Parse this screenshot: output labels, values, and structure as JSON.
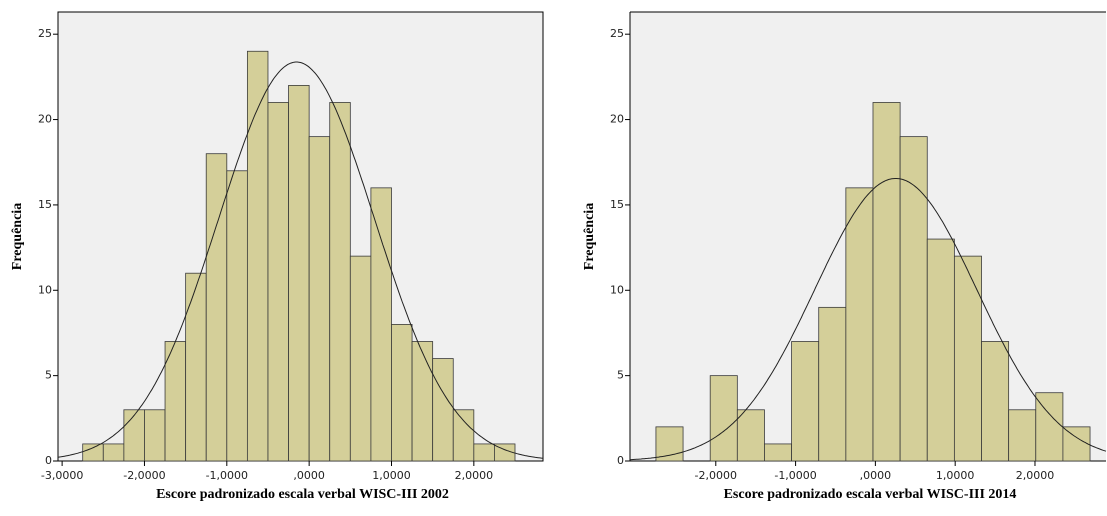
{
  "chart_data": [
    {
      "type": "histogram",
      "x_label": "Escore padronizado escala verbal WISC-III 2002",
      "y_label": "Frequência",
      "bins": [
        -2.75,
        -2.5,
        -2.25,
        -2.0,
        -1.75,
        -1.5,
        -1.25,
        -1.0,
        -0.75,
        -0.5,
        -0.25,
        0.0,
        0.25,
        0.5,
        0.75,
        1.0,
        1.25,
        1.5,
        1.75,
        2.0,
        2.25,
        2.5
      ],
      "values": [
        1,
        1,
        3,
        3,
        7,
        11,
        18,
        17,
        24,
        21,
        22,
        19,
        21,
        12,
        16,
        8,
        7,
        6,
        3,
        1,
        1
      ],
      "color": "#d4cf99",
      "xlim": [
        -3.05,
        2.84
      ],
      "xticks": [
        {
          "value": -3,
          "label": "-3,0000"
        },
        {
          "value": -2,
          "label": "-2,0000"
        },
        {
          "value": -1,
          "label": "-1,0000"
        },
        {
          "value": 0,
          "label": ",0000"
        },
        {
          "value": 1,
          "label": "1,0000"
        },
        {
          "value": 2,
          "label": "2,0000"
        }
      ],
      "ylim": [
        0,
        26.3
      ],
      "yticks": [
        0,
        5,
        10,
        15,
        20,
        25
      ],
      "normal_curve": true
    },
    {
      "type": "histogram",
      "x_label": "Escore padronizado escala verbal WISC-III 2014",
      "y_label": "Frequência",
      "bins": [
        -2.75,
        -2.41,
        -2.07,
        -1.73,
        -1.39,
        -1.05,
        -0.71,
        -0.37,
        -0.03,
        0.31,
        0.65,
        0.99,
        1.33,
        1.67,
        2.01,
        2.35,
        2.69
      ],
      "values": [
        2,
        0,
        5,
        3,
        1,
        7,
        9,
        16,
        21,
        19,
        13,
        12,
        7,
        3,
        4,
        2
      ],
      "color": "#d4cf99",
      "xlim": [
        -3.075,
        2.89
      ],
      "xticks": [
        {
          "value": -2,
          "label": "-2,0000"
        },
        {
          "value": -1,
          "label": "-1,0000"
        },
        {
          "value": 0,
          "label": ",0000"
        },
        {
          "value": 1,
          "label": "1,0000"
        },
        {
          "value": 2,
          "label": "2,0000"
        }
      ],
      "ylim": [
        0,
        26.3
      ],
      "yticks": [
        0,
        5,
        10,
        15,
        20,
        25
      ],
      "normal_curve": true
    }
  ]
}
